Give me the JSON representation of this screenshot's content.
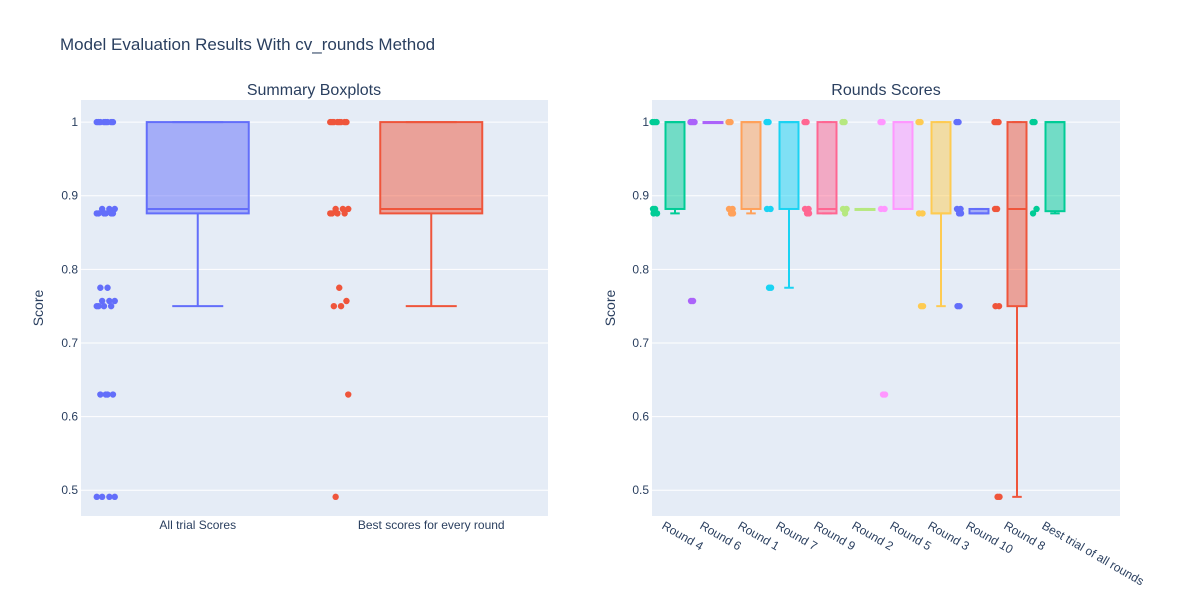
{
  "title": "Model Evaluation Results With cv_rounds Method",
  "chart_data": [
    {
      "type": "box",
      "title": "Summary Boxplots",
      "ylabel": "Score",
      "ylim": [
        0.465,
        1.03
      ],
      "yticks": [
        0.5,
        0.6,
        0.7,
        0.8,
        0.9,
        1
      ],
      "ytick_labels": [
        "0.5",
        "0.6",
        "0.7",
        "0.8",
        "0.9",
        "1"
      ],
      "categories": [
        "All trial Scores",
        "Best scores for every round"
      ],
      "series": [
        {
          "color": "#636efa",
          "points": [
            1,
            1,
            1,
            1,
            1,
            1,
            1,
            1,
            0.882,
            0.882,
            0.882,
            0.876,
            0.876,
            0.876,
            0.876,
            0.876,
            0.876,
            0.775,
            0.775,
            0.757,
            0.757,
            0.757,
            0.75,
            0.75,
            0.75,
            0.75,
            0.63,
            0.63,
            0.63,
            0.63,
            0.491,
            0.491,
            0.491,
            0.491
          ],
          "box": {
            "q1": 0.876,
            "median": 0.882,
            "q3": 1,
            "lowerfence": 0.75,
            "upperfence": 1
          }
        },
        {
          "color": "#ef553b",
          "points": [
            1,
            1,
            1,
            1,
            1,
            1,
            1,
            1,
            0.882,
            0.882,
            0.882,
            0.876,
            0.876,
            0.876,
            0.876,
            0.775,
            0.757,
            0.75,
            0.75,
            0.63,
            0.491
          ],
          "box": {
            "q1": 0.876,
            "median": 0.882,
            "q3": 1,
            "lowerfence": 0.75,
            "upperfence": 1
          }
        }
      ]
    },
    {
      "type": "box",
      "title": "Rounds Scores",
      "ylabel": "Score",
      "ylim": [
        0.465,
        1.03
      ],
      "yticks": [
        0.5,
        0.6,
        0.7,
        0.8,
        0.9,
        1
      ],
      "ytick_labels": [
        "0.5",
        "0.6",
        "0.7",
        "0.8",
        "0.9",
        "1"
      ],
      "categories": [
        "Round 4",
        "Round 6",
        "Round 1",
        "Round 7",
        "Round 9",
        "Round 2",
        "Round 5",
        "Round 3",
        "Round 10",
        "Round 8",
        "Best trial of all rounds"
      ],
      "series": [
        {
          "color": "#00cc96",
          "points": [
            1,
            1,
            1,
            0.882,
            0.882,
            0.876,
            0.876
          ],
          "box": {
            "q1": 0.882,
            "median": 1,
            "q3": 1,
            "lowerfence": 0.876,
            "upperfence": 1
          }
        },
        {
          "color": "#ab63fa",
          "points": [
            1,
            1,
            1,
            0.757,
            0.757
          ],
          "box": {
            "q1": 1,
            "median": 1,
            "q3": 1,
            "lowerfence": 1,
            "upperfence": 1
          }
        },
        {
          "color": "#ffa15a",
          "points": [
            1,
            1,
            0.882,
            0.882,
            0.876,
            0.876
          ],
          "box": {
            "q1": 0.882,
            "median": 1,
            "q3": 1,
            "lowerfence": 0.876,
            "upperfence": 1
          }
        },
        {
          "color": "#19d3f3",
          "points": [
            1,
            1,
            0.882,
            0.882,
            0.775,
            0.775
          ],
          "box": {
            "q1": 0.882,
            "median": 1,
            "q3": 1,
            "lowerfence": 0.775,
            "upperfence": 1
          }
        },
        {
          "color": "#ff6692",
          "points": [
            1,
            1,
            0.882,
            0.882,
            0.876,
            0.876
          ],
          "box": {
            "q1": 0.876,
            "median": 0.882,
            "q3": 1,
            "lowerfence": 0.876,
            "upperfence": 1
          }
        },
        {
          "color": "#b6e880",
          "points": [
            1,
            1,
            0.882,
            0.882,
            0.876
          ],
          "box": {
            "q1": 0.882,
            "median": 0.882,
            "q3": 0.882,
            "lowerfence": 0.882,
            "upperfence": 0.882
          }
        },
        {
          "color": "#ff97ff",
          "points": [
            1,
            1,
            0.882,
            0.882,
            0.63,
            0.63
          ],
          "box": {
            "q1": 0.882,
            "median": 1,
            "q3": 1,
            "lowerfence": 0.882,
            "upperfence": 1
          }
        },
        {
          "color": "#fecb52",
          "points": [
            1,
            1,
            0.876,
            0.876,
            0.75,
            0.75
          ],
          "box": {
            "q1": 0.876,
            "median": 0.876,
            "q3": 1,
            "lowerfence": 0.75,
            "upperfence": 1
          }
        },
        {
          "color": "#636efa",
          "points": [
            1,
            1,
            0.882,
            0.882,
            0.876,
            0.876,
            0.75,
            0.75
          ],
          "box": {
            "q1": 0.876,
            "median": 0.876,
            "q3": 0.882,
            "lowerfence": 0.876,
            "upperfence": 0.882
          }
        },
        {
          "color": "#ef553b",
          "points": [
            1,
            1,
            1,
            0.882,
            0.882,
            0.75,
            0.75,
            0.491,
            0.491
          ],
          "box": {
            "q1": 0.75,
            "median": 0.882,
            "q3": 1,
            "lowerfence": 0.491,
            "upperfence": 1
          }
        },
        {
          "color": "#00cc96",
          "points": [
            1,
            1,
            0.882,
            0.876
          ],
          "box": {
            "q1": 0.879,
            "median": 1,
            "q3": 1,
            "lowerfence": 0.876,
            "upperfence": 1
          }
        }
      ]
    }
  ]
}
